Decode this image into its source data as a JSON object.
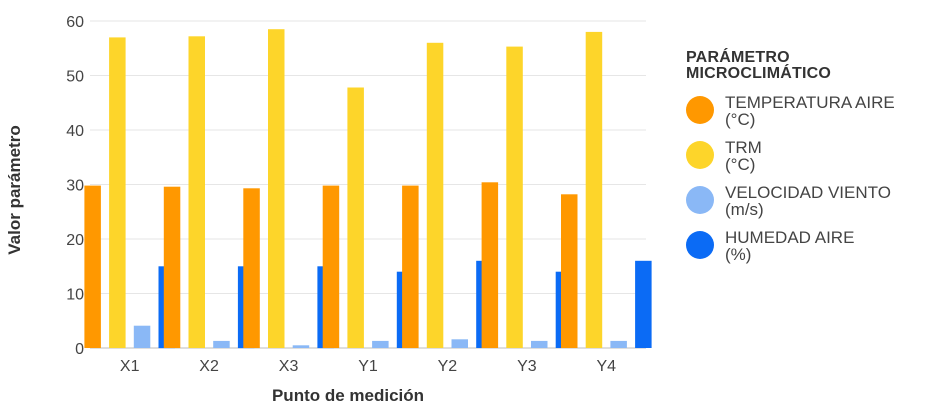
{
  "chart_data": {
    "type": "bar",
    "xlabel": "Punto de medición",
    "ylabel": "Valor parámetro",
    "ylim": [
      0,
      60
    ],
    "yticks": [
      0,
      10,
      20,
      30,
      40,
      50,
      60
    ],
    "grid": true,
    "legend_position": "right",
    "legend_title": "PARÁMETRO MICROCLIMÁTICO",
    "categories": [
      "X1",
      "X2",
      "X3",
      "Y1",
      "Y2",
      "Y3",
      "Y4"
    ],
    "series": [
      {
        "name": "TEMPERATURA AIRE (°C)",
        "line1": "TEMPERATURA AIRE",
        "line2": "(°C)",
        "color": "#FF9800",
        "values": [
          29.8,
          29.6,
          29.3,
          29.8,
          29.8,
          30.4,
          28.2
        ]
      },
      {
        "name": "TRM (°C)",
        "line1": "TRM",
        "line2": "(°C)",
        "color": "#FDD52A",
        "values": [
          57.0,
          57.2,
          58.5,
          47.8,
          56.0,
          55.3,
          58.0
        ]
      },
      {
        "name": "VELOCIDAD VIENTO (m/s)",
        "line1": "VELOCIDAD VIENTO",
        "line2": "(m/s)",
        "color": "#8AB8F6",
        "values": [
          4.1,
          1.3,
          0.5,
          1.3,
          1.6,
          1.3,
          1.3
        ]
      },
      {
        "name": "HUMEDAD AIRE (%)",
        "line1": "HUMEDAD AIRE",
        "line2": "(%)",
        "color": "#0B6BF5",
        "values": [
          15,
          15,
          15,
          14,
          16,
          14,
          16
        ]
      }
    ]
  }
}
